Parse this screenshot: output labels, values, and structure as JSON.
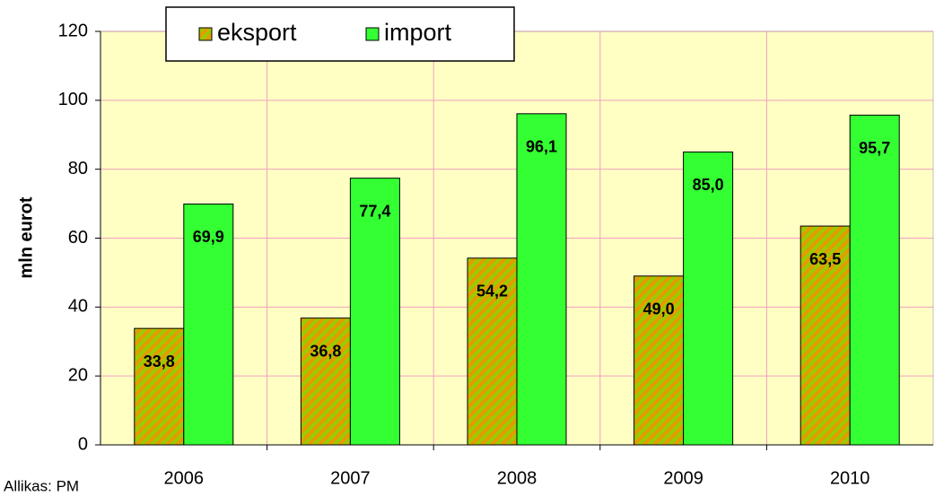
{
  "chart_data": {
    "type": "bar",
    "y_axis_label": "mln eurot",
    "source": "Allikas: PM",
    "categories": [
      "2006",
      "2007",
      "2008",
      "2009",
      "2010"
    ],
    "series": [
      {
        "name": "eksport",
        "color": "#e69a00",
        "values": [
          33.8,
          36.8,
          54.2,
          49.0,
          63.5
        ],
        "value_labels": [
          "33,8",
          "36,8",
          "54,2",
          "49,0",
          "63,5"
        ]
      },
      {
        "name": "import",
        "color": "#33ff33",
        "values": [
          69.9,
          77.4,
          96.1,
          85.0,
          95.7
        ],
        "value_labels": [
          "69,9",
          "77,4",
          "96,1",
          "85,0",
          "95,7"
        ]
      }
    ],
    "ylim": [
      0,
      120
    ],
    "yticks": [
      0,
      20,
      40,
      60,
      80,
      100,
      120
    ],
    "grid": true
  }
}
